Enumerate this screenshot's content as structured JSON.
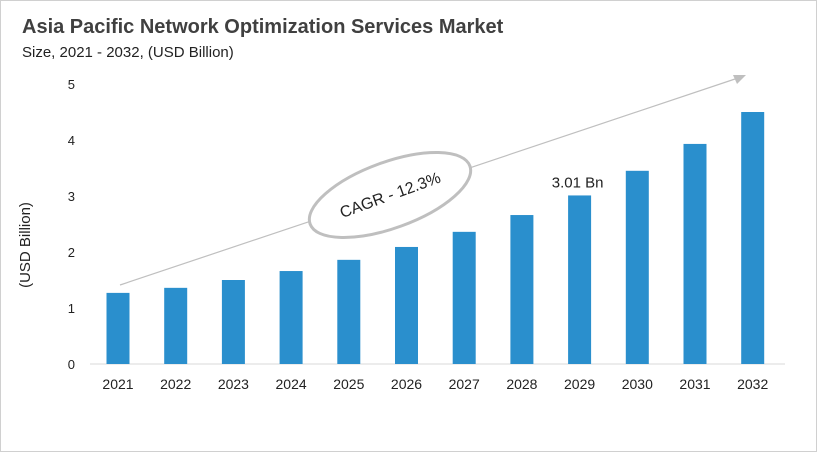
{
  "title": "Asia Pacific Network Optimization Services Market",
  "subtitle": "Size, 2021 - 2032, (USD Billion)",
  "chart_data": {
    "type": "bar",
    "categories": [
      "2021",
      "2022",
      "2023",
      "2024",
      "2025",
      "2026",
      "2027",
      "2028",
      "2029",
      "2030",
      "2031",
      "2032"
    ],
    "values": [
      1.27,
      1.36,
      1.5,
      1.66,
      1.86,
      2.09,
      2.36,
      2.66,
      3.01,
      3.45,
      3.93,
      4.5
    ],
    "ylabel": "(USD Billion)",
    "xlabel": "",
    "ylim": [
      0,
      5
    ],
    "yticks": [
      "0",
      "1",
      "2",
      "3",
      "4",
      "5"
    ],
    "grid": false,
    "bar_color": "#2a8fcd",
    "annotations": {
      "data_label": "3.01 Bn",
      "data_label_category": "2029",
      "cagr": "CAGR - 12.3%"
    }
  }
}
